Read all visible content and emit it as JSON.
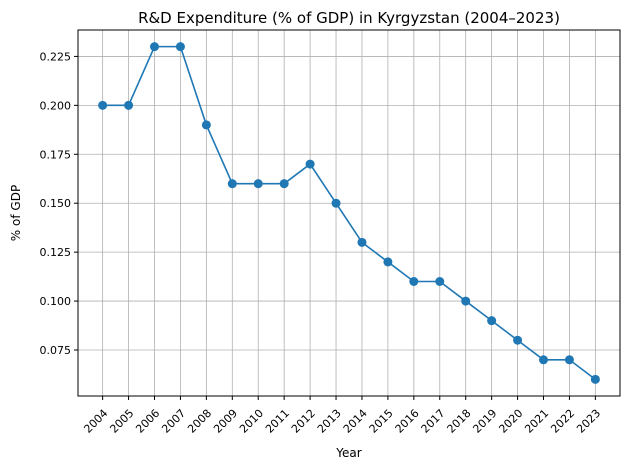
{
  "chart_data": {
    "type": "line",
    "title": "R&D Expenditure (% of GDP) in Kyrgyzstan (2004–2023)",
    "xlabel": "Year",
    "ylabel": "% of GDP",
    "x": [
      "2004",
      "2005",
      "2006",
      "2007",
      "2008",
      "2009",
      "2010",
      "2011",
      "2012",
      "2013",
      "2014",
      "2015",
      "2016",
      "2017",
      "2018",
      "2019",
      "2020",
      "2021",
      "2022",
      "2023"
    ],
    "series": [
      {
        "name": "R&D Expenditure",
        "values": [
          0.2,
          0.2,
          0.23,
          0.23,
          0.19,
          0.16,
          0.16,
          0.16,
          0.17,
          0.15,
          0.13,
          0.12,
          0.11,
          0.11,
          0.1,
          0.09,
          0.08,
          0.07,
          0.07,
          0.06
        ],
        "color": "#1f77b4"
      }
    ],
    "yticks": [
      "0.075",
      "0.100",
      "0.125",
      "0.150",
      "0.175",
      "0.200",
      "0.225"
    ],
    "ylim": [
      0.0515,
      0.2385
    ],
    "grid": true
  }
}
